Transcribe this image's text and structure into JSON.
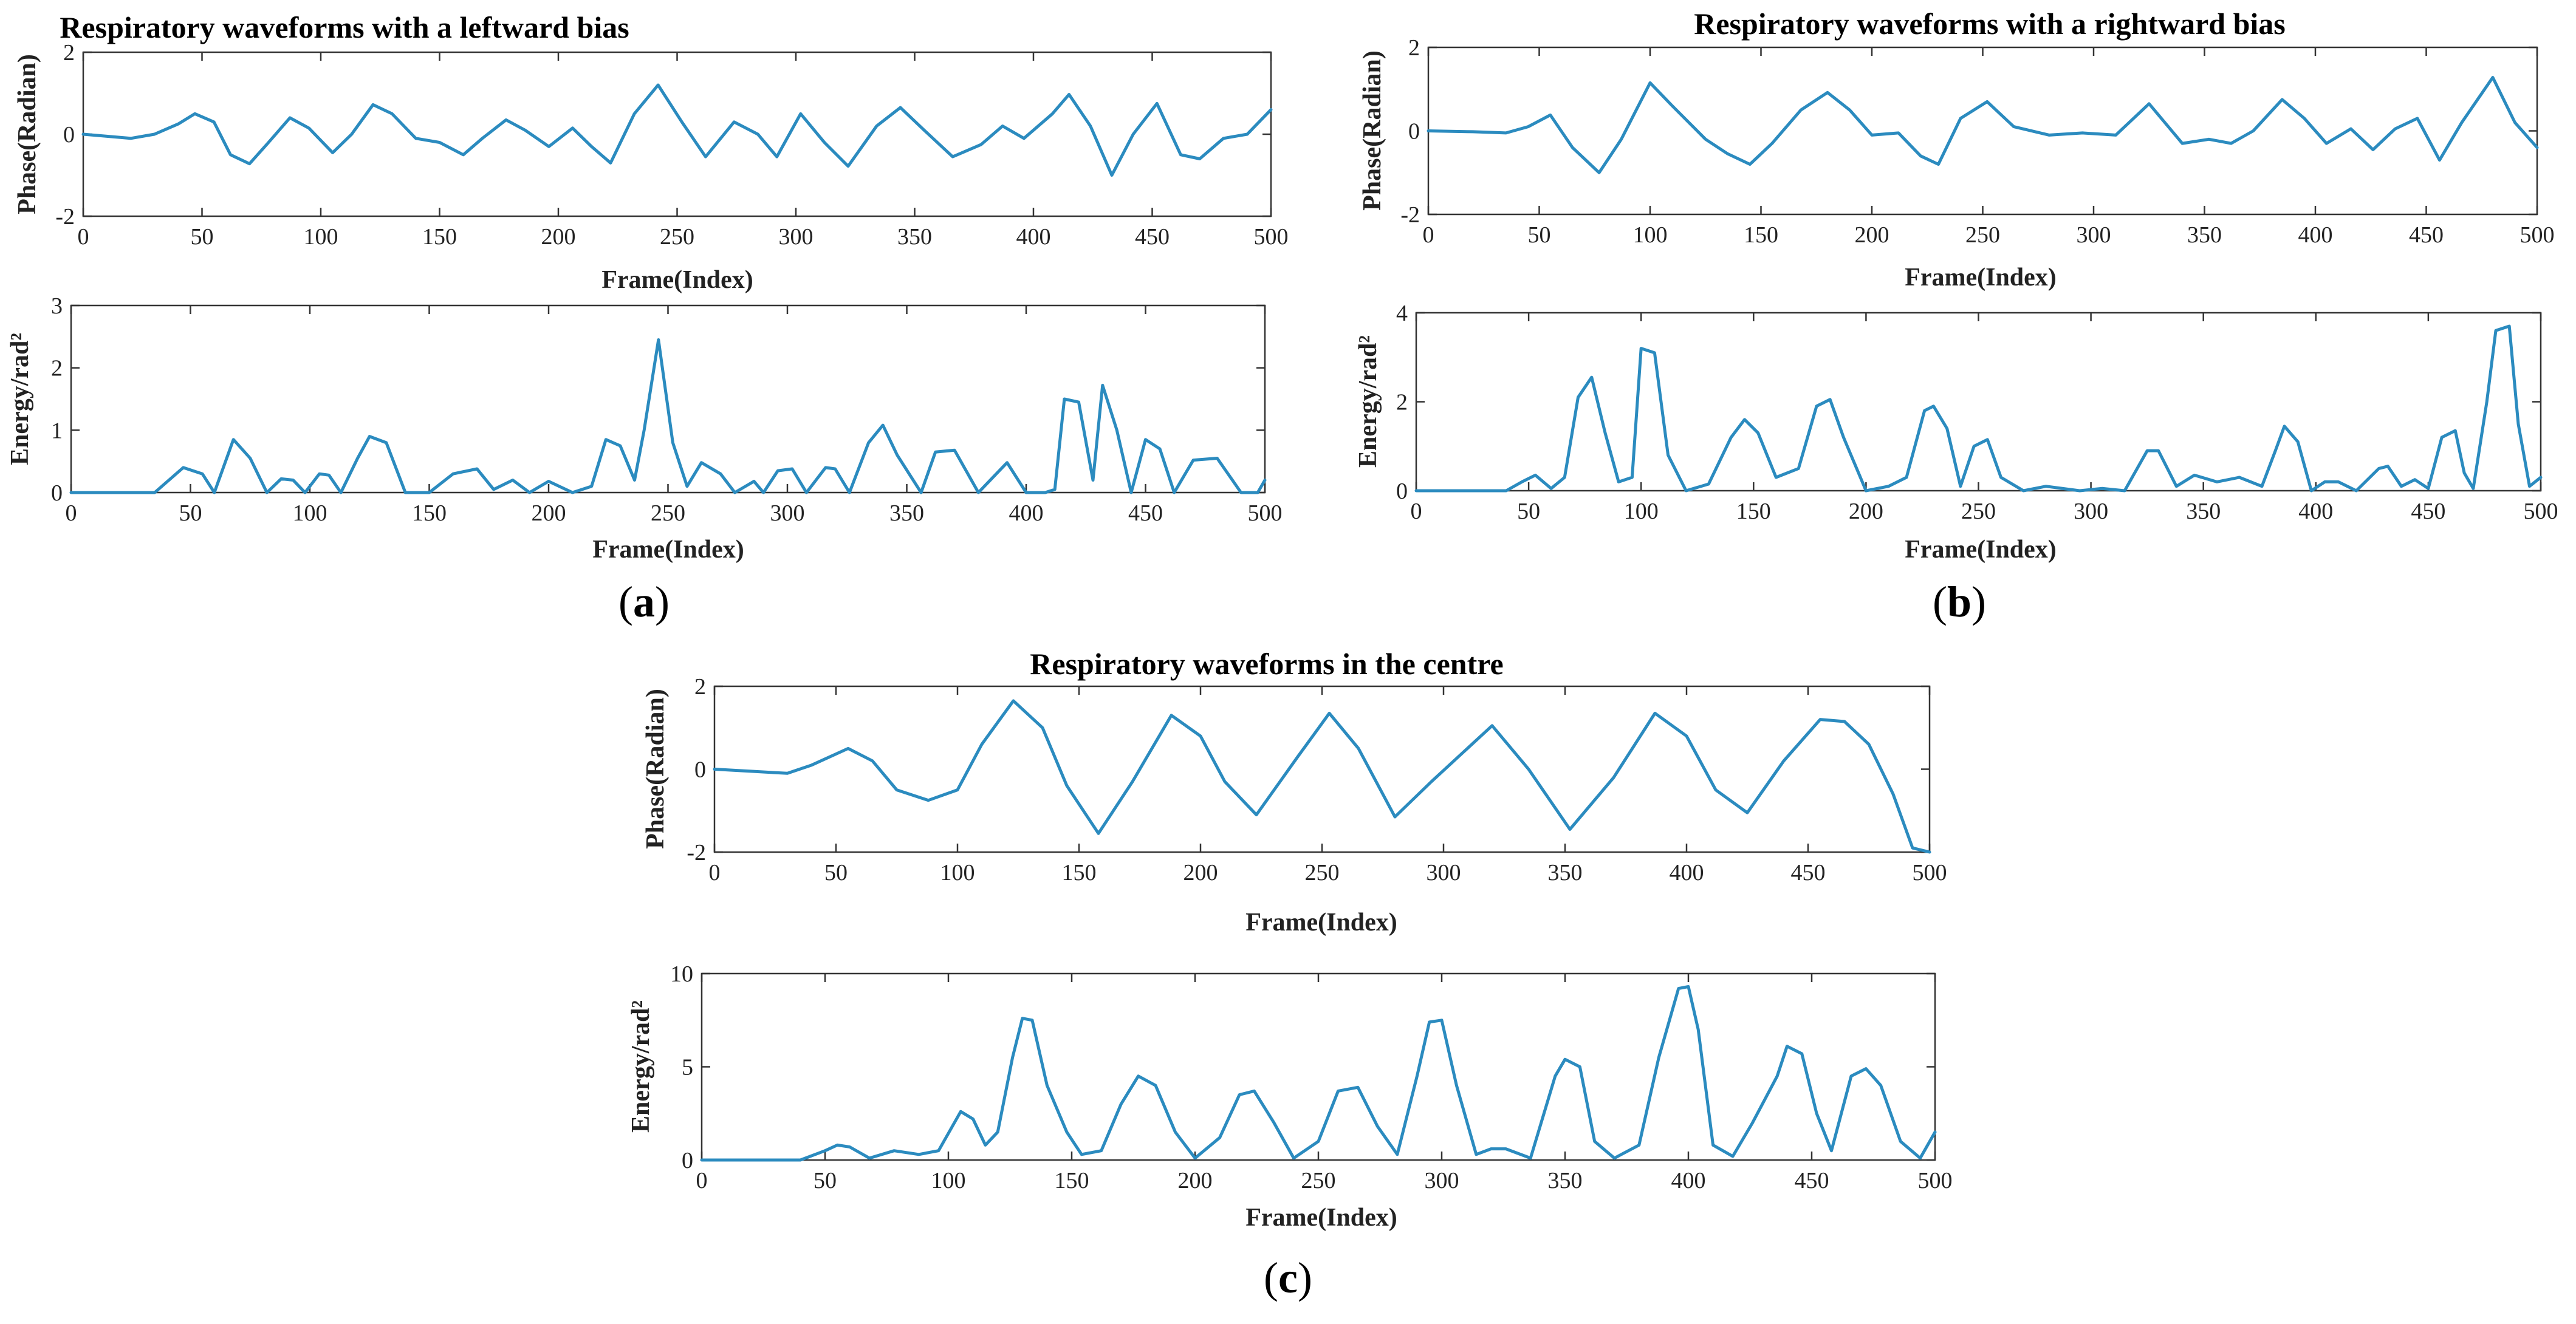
{
  "figure": {
    "series_color": "#2b8bbf",
    "captions": {
      "a": "a",
      "b": "b",
      "c": "c"
    }
  },
  "chart_data": [
    {
      "id": "a-phase",
      "type": "line",
      "title": "Respiratory waveforms with a leftward bias",
      "xlabel": "Frame(Index)",
      "ylabel": "Phase(Radian)",
      "xlim": [
        0,
        500
      ],
      "ylim": [
        -2,
        2
      ],
      "xticks": [
        0,
        50,
        100,
        150,
        200,
        250,
        300,
        350,
        400,
        450,
        500
      ],
      "yticks": [
        -2,
        0,
        2
      ],
      "x": [
        0,
        10,
        20,
        30,
        40,
        47,
        55,
        62,
        70,
        78,
        87,
        95,
        105,
        113,
        122,
        130,
        140,
        150,
        160,
        168,
        178,
        186,
        196,
        206,
        214,
        222,
        232,
        242,
        252,
        262,
        274,
        284,
        292,
        302,
        312,
        322,
        334,
        344,
        354,
        366,
        378,
        387,
        396,
        408,
        415,
        424,
        433,
        442,
        452,
        462,
        470,
        480,
        490,
        500
      ],
      "y": [
        0,
        -0.05,
        -0.1,
        0,
        0.25,
        0.5,
        0.3,
        -0.5,
        -0.72,
        -0.2,
        0.4,
        0.15,
        -0.45,
        0.0,
        0.72,
        0.5,
        -0.1,
        -0.2,
        -0.5,
        -0.1,
        0.35,
        0.1,
        -0.3,
        0.15,
        -0.3,
        -0.7,
        0.5,
        1.2,
        0.3,
        -0.55,
        0.3,
        0.0,
        -0.55,
        0.5,
        -0.2,
        -0.78,
        0.2,
        0.65,
        0.1,
        -0.55,
        -0.25,
        0.2,
        -0.1,
        0.5,
        0.97,
        0.2,
        -1.0,
        0.0,
        0.75,
        -0.5,
        -0.6,
        -0.1,
        0.0,
        0.6
      ]
    },
    {
      "id": "a-energy",
      "type": "line",
      "title": "",
      "xlabel": "Frame(Index)",
      "ylabel": "Energy/rad²",
      "xlim": [
        0,
        500
      ],
      "ylim": [
        0,
        3
      ],
      "xticks": [
        0,
        50,
        100,
        150,
        200,
        250,
        300,
        350,
        400,
        450,
        500
      ],
      "yticks": [
        0,
        1,
        2,
        3
      ],
      "x": [
        0,
        20,
        35,
        47,
        55,
        60,
        68,
        75,
        82,
        88,
        93,
        98,
        104,
        108,
        113,
        120,
        125,
        132,
        140,
        150,
        160,
        170,
        177,
        185,
        192,
        200,
        210,
        218,
        224,
        230,
        236,
        240,
        246,
        252,
        258,
        264,
        272,
        278,
        286,
        290,
        296,
        302,
        308,
        316,
        320,
        326,
        334,
        340,
        346,
        356,
        362,
        370,
        380,
        392,
        400,
        408,
        412,
        416,
        422,
        428,
        432,
        438,
        444,
        450,
        456,
        462,
        470,
        480,
        490,
        497,
        500
      ],
      "y": [
        0,
        0,
        0,
        0.4,
        0.3,
        0,
        0.85,
        0.55,
        0,
        0.22,
        0.2,
        0,
        0.3,
        0.28,
        0,
        0.55,
        0.9,
        0.8,
        0,
        0,
        0.3,
        0.38,
        0.05,
        0.2,
        0,
        0.18,
        0,
        0.1,
        0.85,
        0.75,
        0.2,
        1.0,
        2.45,
        0.8,
        0.1,
        0.48,
        0.3,
        0,
        0.18,
        0,
        0.35,
        0.38,
        0,
        0.4,
        0.38,
        0,
        0.8,
        1.08,
        0.6,
        0,
        0.65,
        0.68,
        0,
        0.48,
        0,
        0,
        0.05,
        1.5,
        1.45,
        0.2,
        1.72,
        1.0,
        0,
        0.85,
        0.7,
        0,
        0.52,
        0.55,
        0,
        0,
        0.2
      ]
    },
    {
      "id": "b-phase",
      "type": "line",
      "title": "Respiratory waveforms with a rightward bias",
      "xlabel": "Frame(Index)",
      "ylabel": "Phase(Radian)",
      "xlim": [
        0,
        500
      ],
      "ylim": [
        -2,
        2
      ],
      "xticks": [
        0,
        50,
        100,
        150,
        200,
        250,
        300,
        350,
        400,
        450,
        500
      ],
      "yticks": [
        -2,
        0,
        2
      ],
      "x": [
        0,
        20,
        35,
        45,
        55,
        65,
        77,
        87,
        100,
        110,
        125,
        135,
        145,
        155,
        168,
        180,
        190,
        200,
        212,
        222,
        230,
        240,
        252,
        264,
        280,
        295,
        310,
        325,
        340,
        352,
        362,
        372,
        385,
        395,
        405,
        416,
        426,
        436,
        446,
        456,
        466,
        480,
        490,
        500
      ],
      "y": [
        0,
        -0.02,
        -0.05,
        0.1,
        0.38,
        -0.4,
        -1.0,
        -0.2,
        1.15,
        0.6,
        -0.2,
        -0.55,
        -0.8,
        -0.3,
        0.5,
        0.92,
        0.5,
        -0.1,
        -0.05,
        -0.6,
        -0.8,
        0.3,
        0.7,
        0.1,
        -0.1,
        -0.05,
        -0.1,
        0.65,
        -0.3,
        -0.2,
        -0.3,
        0.0,
        0.75,
        0.3,
        -0.3,
        0.05,
        -0.45,
        0.05,
        0.3,
        -0.7,
        0.2,
        1.28,
        0.2,
        -0.4
      ]
    },
    {
      "id": "b-energy",
      "type": "line",
      "title": "",
      "xlabel": "Frame(Index)",
      "ylabel": "Energy/rad²",
      "xlim": [
        0,
        500
      ],
      "ylim": [
        0,
        4
      ],
      "xticks": [
        0,
        50,
        100,
        150,
        200,
        250,
        300,
        350,
        400,
        450,
        500
      ],
      "yticks": [
        0,
        2,
        4
      ],
      "x": [
        0,
        20,
        40,
        47,
        53,
        60,
        66,
        72,
        78,
        84,
        90,
        96,
        100,
        106,
        112,
        120,
        130,
        140,
        146,
        152,
        160,
        170,
        178,
        184,
        190,
        200,
        210,
        218,
        226,
        230,
        236,
        242,
        248,
        254,
        260,
        270,
        280,
        295,
        305,
        315,
        325,
        330,
        338,
        346,
        356,
        366,
        376,
        382,
        386,
        392,
        398,
        404,
        410,
        418,
        428,
        432,
        438,
        444,
        450,
        456,
        462,
        466,
        470,
        476,
        480,
        486,
        490,
        495,
        500
      ],
      "y": [
        0,
        0,
        0,
        0.2,
        0.35,
        0.05,
        0.3,
        2.1,
        2.55,
        1.3,
        0.2,
        0.3,
        3.2,
        3.1,
        0.8,
        0,
        0.15,
        1.2,
        1.6,
        1.3,
        0.3,
        0.5,
        1.9,
        2.05,
        1.2,
        0,
        0.1,
        0.3,
        1.8,
        1.9,
        1.4,
        0.1,
        1.0,
        1.15,
        0.3,
        0,
        0.1,
        0,
        0.05,
        0,
        0.9,
        0.9,
        0.1,
        0.35,
        0.2,
        0.3,
        0.1,
        0.9,
        1.45,
        1.1,
        0,
        0.2,
        0.2,
        0,
        0.5,
        0.55,
        0.1,
        0.25,
        0.05,
        1.2,
        1.35,
        0.4,
        0.05,
        2.0,
        3.6,
        3.7,
        1.5,
        0.1,
        0.3
      ]
    },
    {
      "id": "c-phase",
      "type": "line",
      "title": "Respiratory waveforms in the centre",
      "xlabel": "Frame(Index)",
      "ylabel": "Phase(Radian)",
      "xlim": [
        0,
        500
      ],
      "ylim": [
        -2,
        2
      ],
      "xticks": [
        0,
        50,
        100,
        150,
        200,
        250,
        300,
        350,
        400,
        450,
        500
      ],
      "yticks": [
        -2,
        0,
        2
      ],
      "x": [
        0,
        15,
        30,
        40,
        55,
        65,
        75,
        88,
        100,
        110,
        123,
        135,
        145,
        158,
        172,
        188,
        200,
        210,
        223,
        240,
        253,
        265,
        280,
        295,
        320,
        335,
        352,
        370,
        387,
        400,
        412,
        425,
        440,
        455,
        465,
        475,
        485,
        493,
        500
      ],
      "y": [
        0,
        -0.05,
        -0.1,
        0.1,
        0.5,
        0.2,
        -0.5,
        -0.75,
        -0.5,
        0.6,
        1.65,
        1.0,
        -0.4,
        -1.55,
        -0.3,
        1.3,
        0.8,
        -0.3,
        -1.1,
        0.3,
        1.35,
        0.5,
        -1.15,
        -0.3,
        1.05,
        0.0,
        -1.45,
        -0.2,
        1.35,
        0.8,
        -0.5,
        -1.05,
        0.2,
        1.2,
        1.15,
        0.6,
        -0.6,
        -1.9,
        -2.0
      ]
    },
    {
      "id": "c-energy",
      "type": "line",
      "title": "",
      "xlabel": "Frame(Index)",
      "ylabel": "Energy/rad²",
      "xlim": [
        0,
        500
      ],
      "ylim": [
        0,
        10
      ],
      "xticks": [
        0,
        50,
        100,
        150,
        200,
        250,
        300,
        350,
        400,
        450,
        500
      ],
      "yticks": [
        0,
        5,
        10
      ],
      "x": [
        0,
        20,
        40,
        50,
        55,
        60,
        68,
        78,
        88,
        96,
        105,
        110,
        115,
        120,
        126,
        130,
        134,
        140,
        148,
        154,
        162,
        170,
        177,
        184,
        192,
        200,
        210,
        218,
        224,
        232,
        240,
        250,
        258,
        266,
        274,
        282,
        290,
        295,
        300,
        306,
        314,
        320,
        326,
        336,
        346,
        350,
        356,
        362,
        370,
        380,
        388,
        396,
        400,
        404,
        410,
        418,
        426,
        436,
        440,
        446,
        452,
        458,
        466,
        472,
        478,
        486,
        494,
        500
      ],
      "y": [
        0,
        0,
        0,
        0.5,
        0.8,
        0.7,
        0.1,
        0.5,
        0.3,
        0.5,
        2.6,
        2.2,
        0.8,
        1.5,
        5.5,
        7.6,
        7.5,
        4.0,
        1.5,
        0.3,
        0.5,
        3.0,
        4.5,
        4.0,
        1.5,
        0.1,
        1.2,
        3.5,
        3.7,
        2.0,
        0.1,
        1.0,
        3.7,
        3.9,
        1.8,
        0.3,
        4.5,
        7.4,
        7.5,
        4.0,
        0.3,
        0.6,
        0.6,
        0.1,
        4.5,
        5.4,
        5.0,
        1.0,
        0.1,
        0.8,
        5.5,
        9.2,
        9.3,
        7.0,
        0.8,
        0.2,
        2.0,
        4.5,
        6.1,
        5.7,
        2.5,
        0.5,
        4.5,
        4.9,
        4.0,
        1.0,
        0.1,
        1.5
      ]
    }
  ]
}
